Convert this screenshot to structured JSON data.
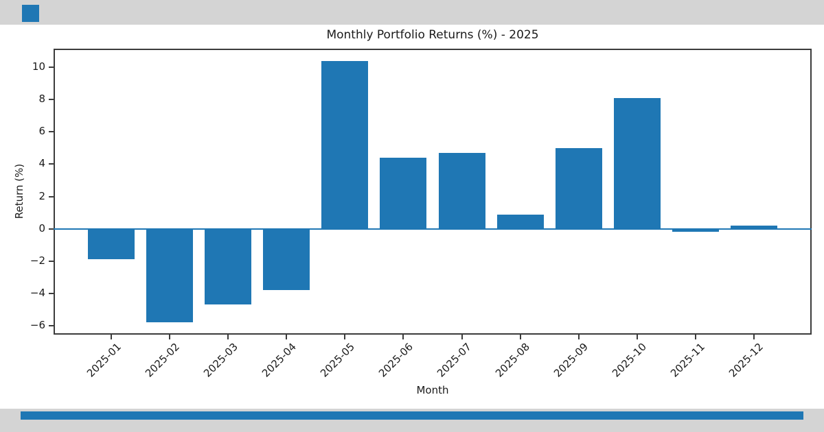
{
  "chart_data": {
    "type": "bar",
    "title": "Monthly Portfolio Returns (%) - 2025",
    "xlabel": "Month",
    "ylabel": "Return (%)",
    "categories": [
      "2025-01",
      "2025-02",
      "2025-03",
      "2025-04",
      "2025-05",
      "2025-06",
      "2025-07",
      "2025-08",
      "2025-09",
      "2025-10",
      "2025-11",
      "2025-12"
    ],
    "values": [
      -1.9,
      -5.8,
      -4.7,
      -3.8,
      10.4,
      4.4,
      4.7,
      0.9,
      5.0,
      8.1,
      -0.2,
      0.2
    ],
    "yticks": [
      10,
      8,
      6,
      4,
      2,
      0,
      -2,
      -4,
      -6
    ],
    "ylim": [
      -6.55,
      11.15
    ],
    "grid": false,
    "legend_position": "none",
    "bar_color": "#1f77b4",
    "zero_line_color": "#1f77b4"
  },
  "decor": {
    "band_color": "#d4d4d4",
    "logo_square_color": "#1f77b4",
    "accent_strip_color": "#1f77b4"
  }
}
